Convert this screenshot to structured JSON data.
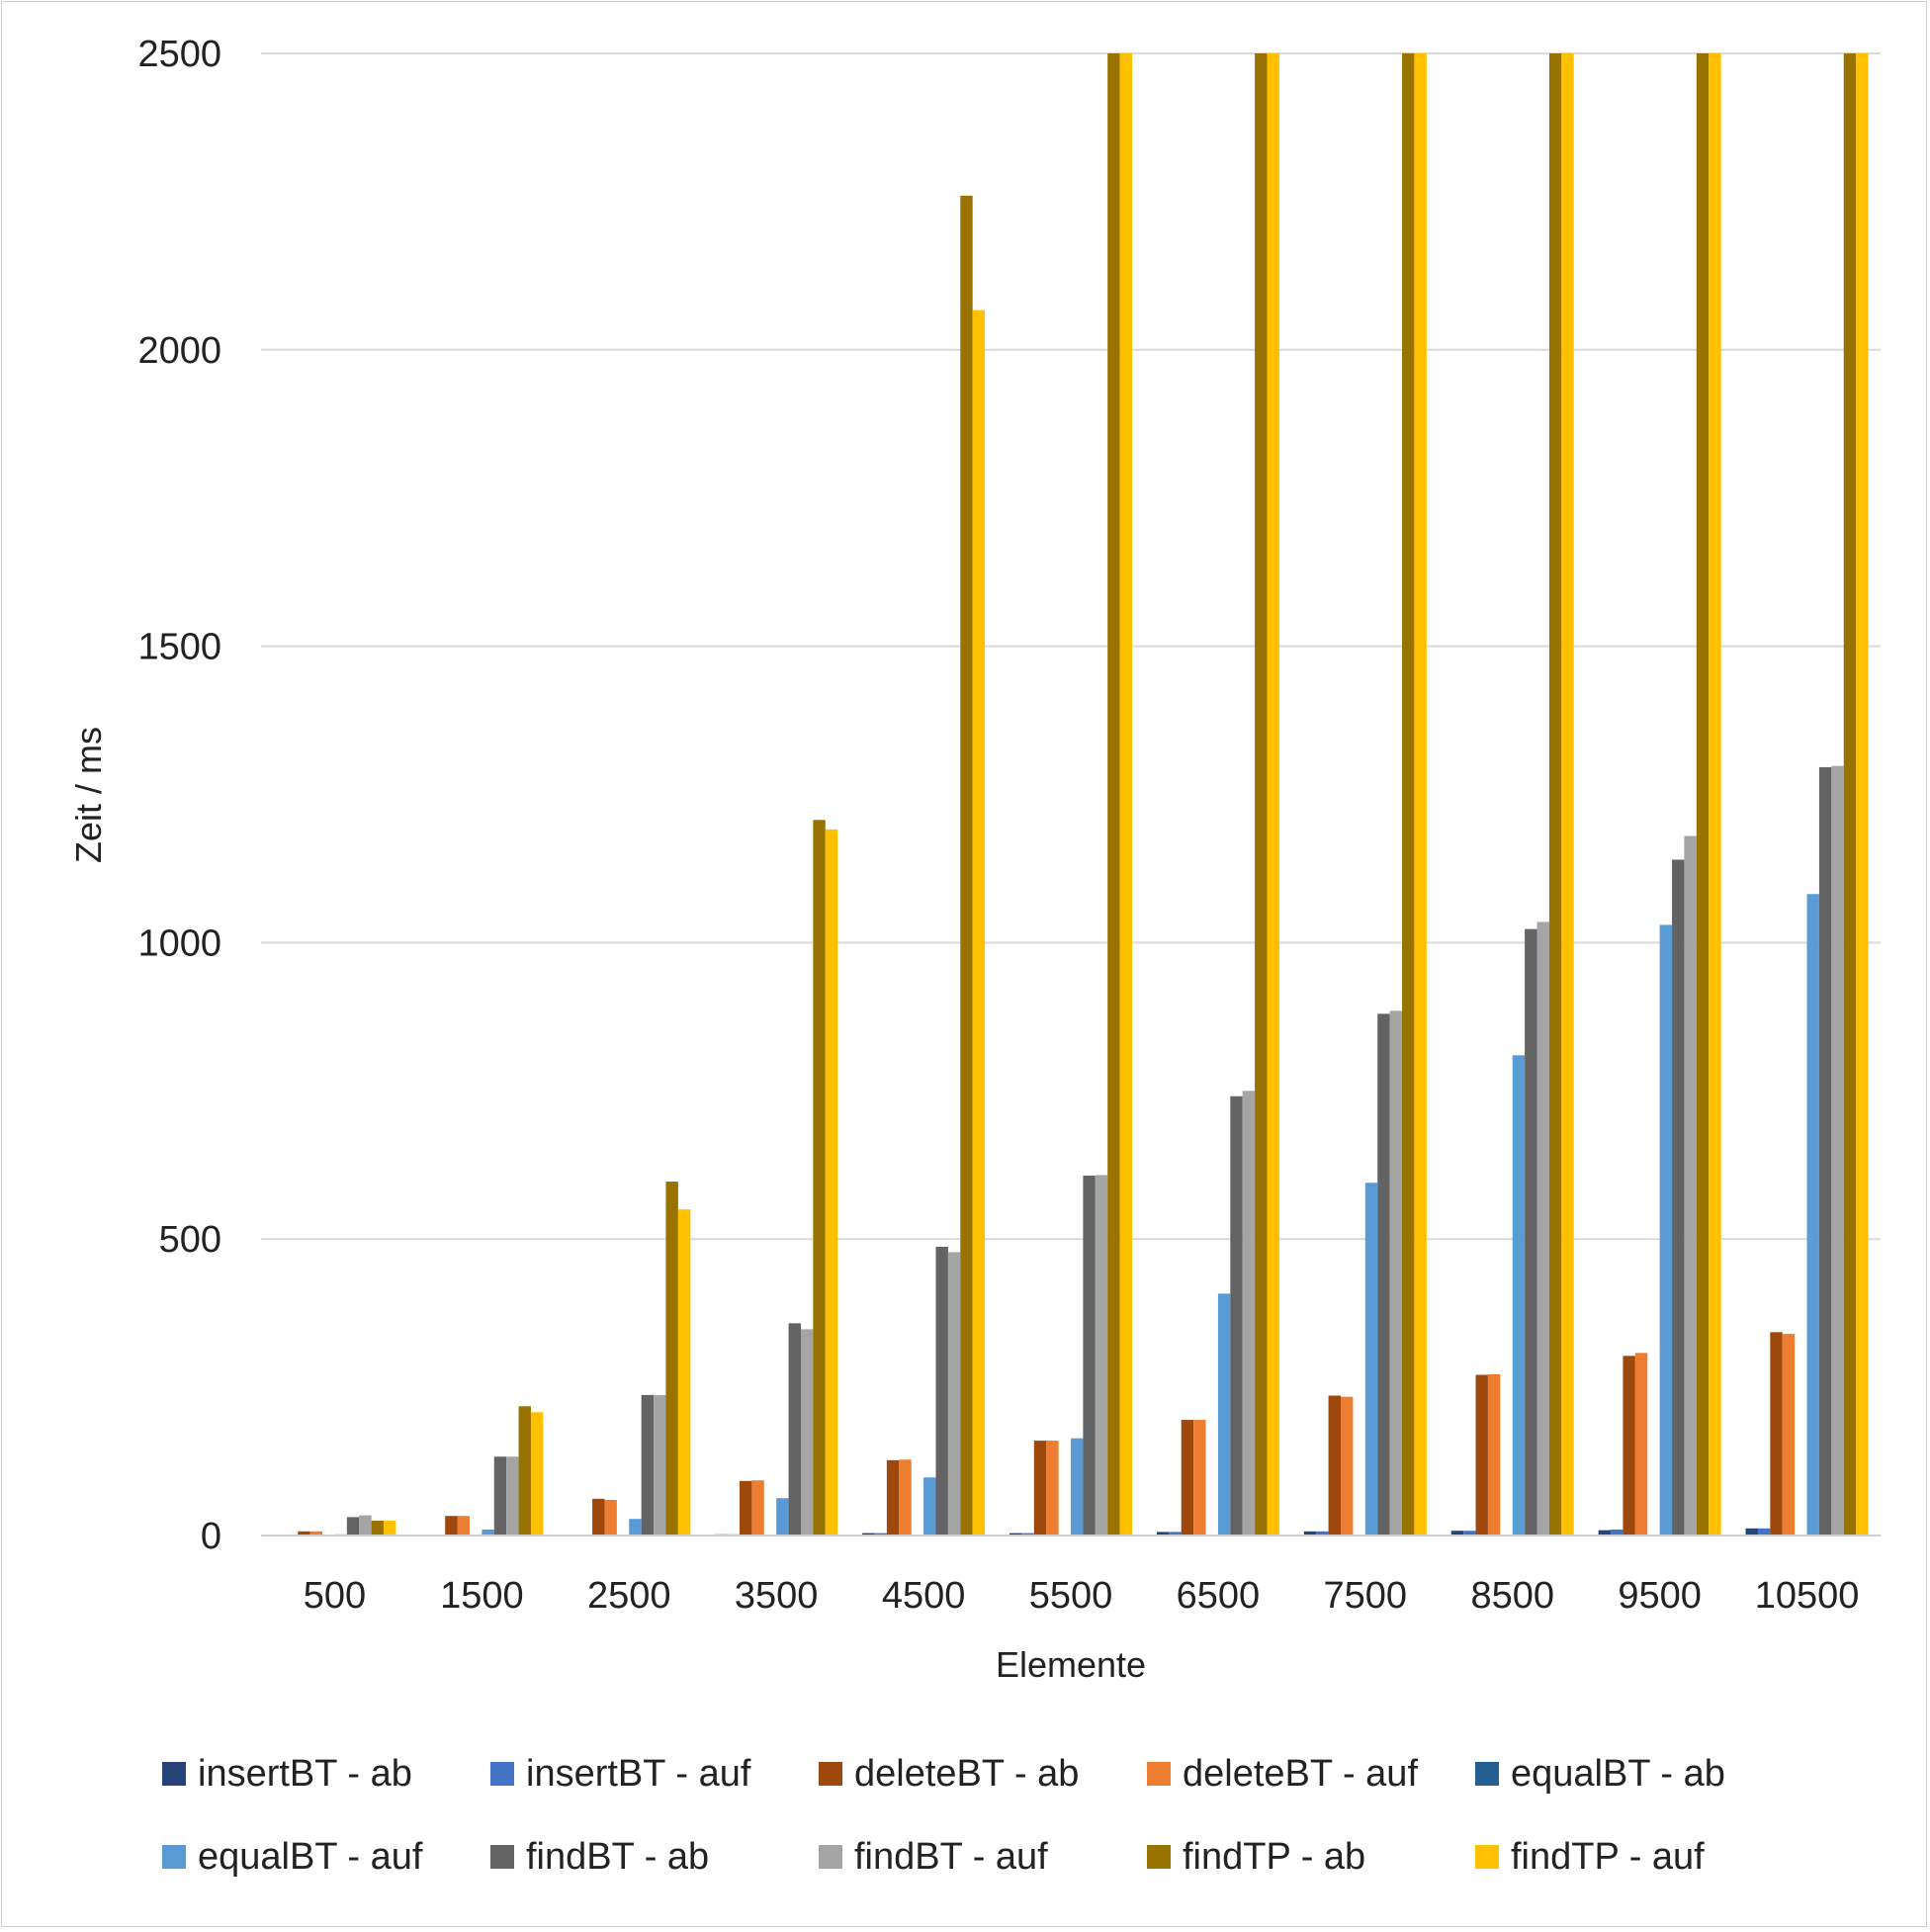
{
  "chart_data": {
    "type": "bar",
    "title": "",
    "xlabel": "Elemente",
    "ylabel": "Zeit / ms",
    "ylim": [
      0,
      2500
    ],
    "yticks": [
      0,
      500,
      1000,
      1500,
      2000,
      2500
    ],
    "grid": true,
    "legend_position": "bottom",
    "categories": [
      "500",
      "1500",
      "2500",
      "3500",
      "4500",
      "5500",
      "6500",
      "7500",
      "8500",
      "9500",
      "10500"
    ],
    "series": [
      {
        "name": "insertBT - ab",
        "color": "#264478",
        "values": [
          0,
          0,
          0,
          2,
          4,
          4,
          6,
          7,
          8,
          9,
          12
        ]
      },
      {
        "name": "insertBT - auf",
        "color": "#4472C4",
        "values": [
          0,
          0,
          0,
          2,
          4,
          4,
          6,
          7,
          8,
          10,
          12
        ]
      },
      {
        "name": "deleteBT - ab",
        "color": "#9E480E",
        "values": [
          7,
          33,
          62,
          92,
          127,
          160,
          195,
          236,
          271,
          303,
          343
        ]
      },
      {
        "name": "deleteBT  - auf",
        "color": "#ED7D31",
        "values": [
          7,
          33,
          60,
          93,
          128,
          160,
          195,
          234,
          272,
          308,
          340
        ]
      },
      {
        "name": "equalBT - ab",
        "color": "#255E91",
        "values": [
          0,
          0,
          0,
          0,
          0,
          0,
          0,
          0,
          0,
          0,
          0
        ]
      },
      {
        "name": "equalBT - auf",
        "color": "#5B9BD5",
        "values": [
          2,
          10,
          28,
          63,
          98,
          164,
          408,
          595,
          810,
          1030,
          1082
        ]
      },
      {
        "name": "findBT - ab",
        "color": "#636363",
        "values": [
          31,
          133,
          237,
          358,
          487,
          607,
          741,
          880,
          1023,
          1140,
          1296
        ]
      },
      {
        "name": "findBT  - auf",
        "color": "#A5A5A5",
        "values": [
          34,
          133,
          237,
          348,
          478,
          608,
          750,
          885,
          1035,
          1180,
          1298
        ]
      },
      {
        "name": "findTP - ab",
        "color": "#997300",
        "values": [
          25,
          218,
          597,
          1207,
          2260,
          2500,
          2500,
          2500,
          2500,
          2500,
          2500
        ]
      },
      {
        "name": "findTP - auf",
        "color": "#FFC000",
        "values": [
          25,
          208,
          550,
          1191,
          2067,
          2500,
          2500,
          2500,
          2500,
          2500,
          2500
        ]
      }
    ]
  }
}
